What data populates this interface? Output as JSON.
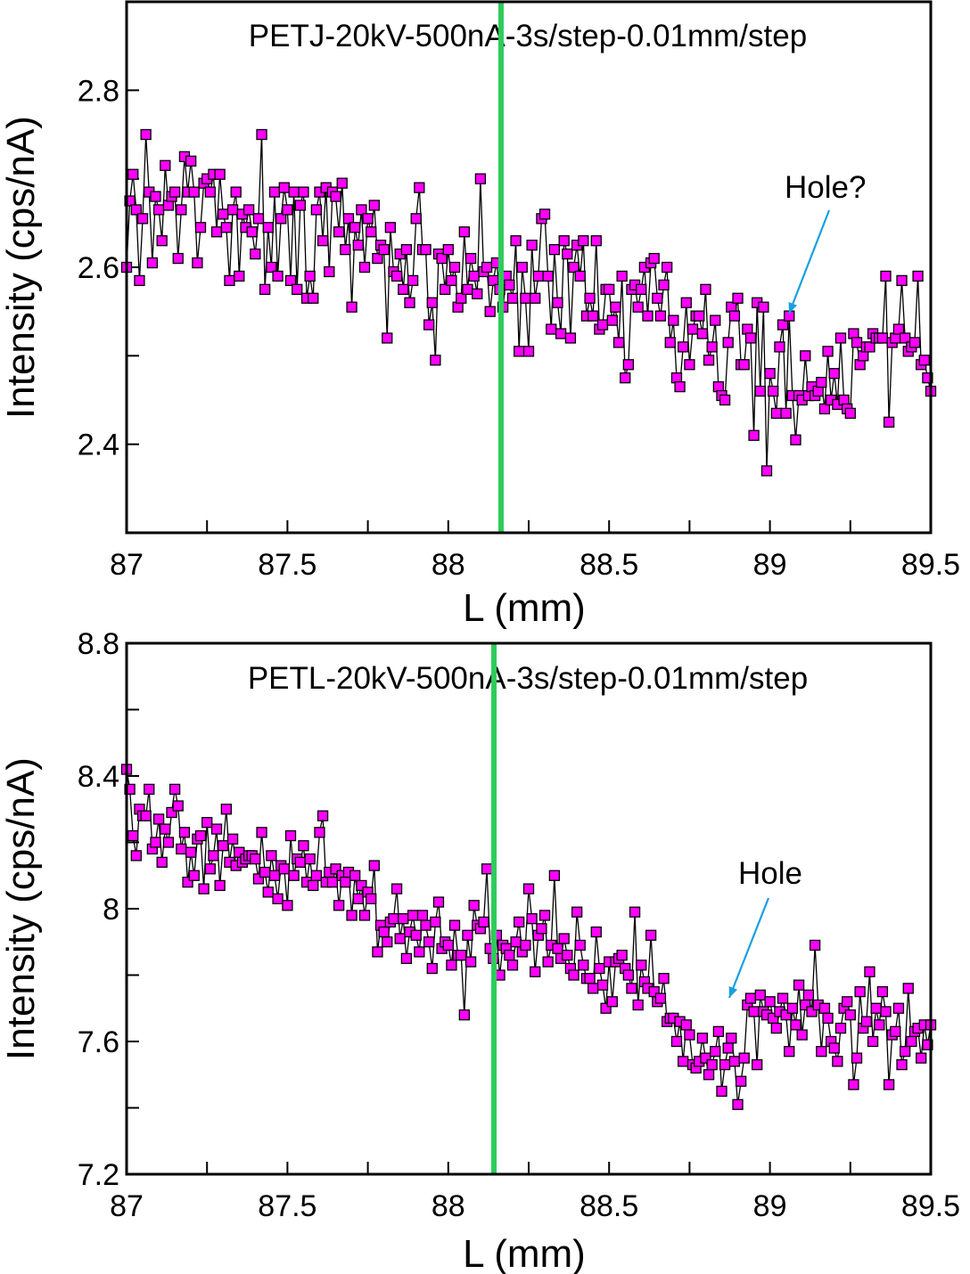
{
  "colors": {
    "marker_fill": "#ff00ff",
    "marker_edge": "#000000",
    "line": "#000000",
    "marker_line": "#2ecc5a",
    "arrow": "#1a9fe0"
  },
  "chart_data": [
    {
      "type": "line",
      "title": "PETJ-20kV-500nA-3s/step-0.01mm/step",
      "xlabel": "L (mm)",
      "ylabel": "Intensity (cps/nA)",
      "xlim": [
        87,
        89.5
      ],
      "ylim": [
        2.3,
        2.9
      ],
      "xticks": [
        "87",
        "87.5",
        "88",
        "88.5",
        "89",
        "89.5"
      ],
      "xtick_values": [
        87,
        87.5,
        88,
        88.5,
        89,
        89.5
      ],
      "yticks": [
        "2.4",
        "2.6",
        "2.8"
      ],
      "ytick_values": [
        2.4,
        2.6,
        2.8
      ],
      "y_minor_ticks": [
        2.5,
        2.7
      ],
      "marker": "square",
      "vertical_line_x": 88.164,
      "annotation": {
        "text": "Hole?",
        "x": 89.04,
        "y": 2.545
      },
      "x_start": 87.0,
      "x_step": 0.01,
      "values": [
        2.6,
        2.675,
        2.705,
        2.665,
        2.585,
        2.655,
        2.75,
        2.685,
        2.605,
        2.68,
        2.665,
        2.63,
        2.715,
        2.67,
        2.68,
        2.685,
        2.61,
        2.665,
        2.725,
        2.685,
        2.72,
        2.685,
        2.605,
        2.645,
        2.695,
        2.7,
        2.685,
        2.705,
        2.64,
        2.705,
        2.66,
        2.645,
        2.585,
        2.665,
        2.685,
        2.59,
        2.66,
        2.645,
        2.665,
        2.64,
        2.615,
        2.655,
        2.75,
        2.575,
        2.645,
        2.6,
        2.685,
        2.59,
        2.655,
        2.69,
        2.665,
        2.585,
        2.685,
        2.575,
        2.67,
        2.685,
        2.565,
        2.59,
        2.565,
        2.665,
        2.685,
        2.63,
        2.69,
        2.595,
        2.685,
        2.68,
        2.64,
        2.695,
        2.62,
        2.655,
        2.555,
        2.645,
        2.625,
        2.665,
        2.6,
        2.655,
        2.64,
        2.67,
        2.61,
        2.625,
        2.62,
        2.52,
        2.645,
        2.595,
        2.59,
        2.615,
        2.575,
        2.62,
        2.56,
        2.585,
        2.655,
        2.69,
        2.62,
        2.62,
        2.535,
        2.56,
        2.495,
        2.615,
        2.61,
        2.575,
        2.62,
        2.585,
        2.6,
        2.555,
        2.565,
        2.64,
        2.575,
        2.61,
        2.59,
        2.57,
        2.7,
        2.595,
        2.6,
        2.55,
        2.585,
        2.605,
        2.575,
        2.555,
        2.59,
        2.58,
        2.565,
        2.63,
        2.505,
        2.6,
        2.565,
        2.505,
        2.625,
        2.565,
        2.59,
        2.655,
        2.66,
        2.59,
        2.53,
        2.62,
        2.56,
        2.525,
        2.63,
        2.615,
        2.52,
        2.6,
        2.625,
        2.59,
        2.63,
        2.545,
        2.565,
        2.545,
        2.63,
        2.53,
        2.535,
        2.575,
        2.575,
        2.54,
        2.555,
        2.515,
        2.59,
        2.475,
        2.49,
        2.575,
        2.58,
        2.555,
        2.575,
        2.6,
        2.545,
        2.605,
        2.61,
        2.565,
        2.545,
        2.58,
        2.6,
        2.515,
        2.54,
        2.475,
        2.465,
        2.51,
        2.56,
        2.49,
        2.53,
        2.545,
        2.545,
        2.525,
        2.575,
        2.495,
        2.51,
        2.54,
        2.465,
        2.455,
        2.45,
        2.515,
        2.555,
        2.545,
        2.565,
        2.49,
        2.49,
        2.53,
        2.52,
        2.41,
        2.56,
        2.46,
        2.555,
        2.37,
        2.48,
        2.46,
        2.435,
        2.51,
        2.535,
        2.435,
        2.545,
        2.455,
        2.405,
        2.455,
        2.45,
        2.5,
        2.455,
        2.465,
        2.455,
        2.46,
        2.47,
        2.44,
        2.505,
        2.45,
        2.48,
        2.445,
        2.52,
        2.45,
        2.44,
        2.435,
        2.525,
        2.515,
        2.49,
        2.5,
        2.51,
        2.51,
        2.525,
        2.52,
        2.52,
        2.52,
        2.59,
        2.425,
        2.515,
        2.52,
        2.53,
        2.585,
        2.52,
        2.505,
        2.51,
        2.515,
        2.59,
        2.49,
        2.495,
        2.475,
        2.46
      ]
    },
    {
      "type": "line",
      "title": "PETL-20kV-500nA-3s/step-0.01mm/step",
      "xlabel": "L (mm)",
      "ylabel": "Intensity (cps/nA)",
      "xlim": [
        87,
        89.5
      ],
      "ylim": [
        7.2,
        8.8
      ],
      "xticks": [
        "87",
        "87.5",
        "88",
        "88.5",
        "89",
        "89.5"
      ],
      "xtick_values": [
        87,
        87.5,
        88,
        88.5,
        89,
        89.5
      ],
      "yticks": [
        "7.2",
        "7.6",
        "8",
        "8.4",
        "8.8"
      ],
      "ytick_values": [
        7.2,
        7.6,
        8.0,
        8.4,
        8.8
      ],
      "y_minor_ticks": [
        7.4,
        7.8,
        8.2,
        8.6
      ],
      "marker": "square",
      "vertical_line_x": 88.142,
      "annotation": {
        "text": "Hole",
        "x": 88.87,
        "y": 7.74
      },
      "x_start": 87.0,
      "x_step": 0.01,
      "values": [
        8.42,
        8.36,
        8.22,
        8.16,
        8.3,
        8.28,
        8.28,
        8.36,
        8.18,
        8.2,
        8.27,
        8.14,
        8.24,
        8.2,
        8.29,
        8.36,
        8.31,
        8.18,
        8.23,
        8.08,
        8.17,
        8.1,
        8.21,
        8.22,
        8.06,
        8.26,
        8.12,
        8.16,
        8.24,
        8.07,
        8.19,
        8.3,
        8.14,
        8.21,
        8.13,
        8.17,
        8.14,
        8.15,
        8.16,
        8.16,
        8.15,
        8.09,
        8.23,
        8.11,
        8.05,
        8.16,
        8.1,
        8.03,
        8.13,
        8.12,
        8.01,
        8.22,
        8.1,
        8.15,
        8.14,
        8.19,
        8.08,
        8.15,
        8.07,
        8.1,
        8.23,
        8.28,
        8.08,
        8.11,
        8.08,
        8.12,
        8.01,
        8.1,
        8.08,
        8.11,
        7.98,
        8.1,
        8.03,
        8.07,
        7.98,
        8.05,
        8.03,
        8.13,
        7.87,
        7.95,
        7.93,
        7.9,
        7.96,
        7.97,
        8.06,
        7.91,
        7.97,
        7.85,
        7.93,
        7.98,
        7.92,
        7.87,
        7.98,
        7.95,
        7.9,
        7.82,
        7.96,
        8.02,
        7.88,
        7.9,
        7.89,
        7.83,
        7.95,
        7.86,
        7.86,
        7.68,
        7.92,
        7.84,
        8.01,
        7.95,
        7.94,
        7.96,
        8.12,
        7.88,
        7.85,
        7.92,
        7.8,
        7.89,
        7.88,
        7.86,
        7.83,
        7.9,
        7.96,
        7.87,
        7.89,
        8.06,
        7.97,
        7.81,
        7.92,
        7.94,
        7.98,
        7.84,
        7.89,
        8.1,
        7.88,
        7.85,
        7.91,
        7.86,
        7.82,
        7.8,
        7.99,
        7.89,
        7.83,
        7.79,
        7.79,
        7.76,
        7.93,
        7.82,
        7.77,
        7.7,
        7.84,
        7.72,
        7.84,
        7.85,
        7.86,
        7.82,
        7.8,
        7.76,
        7.99,
        7.71,
        7.83,
        7.78,
        7.76,
        7.92,
        7.75,
        7.72,
        7.73,
        7.79,
        7.66,
        7.67,
        7.67,
        7.6,
        7.66,
        7.54,
        7.65,
        7.62,
        7.53,
        7.52,
        7.54,
        7.61,
        7.55,
        7.5,
        7.53,
        7.57,
        7.63,
        7.45,
        7.53,
        7.58,
        7.61,
        7.54,
        7.41,
        7.48,
        7.55,
        7.71,
        7.73,
        7.69,
        7.53,
        7.74,
        7.69,
        7.68,
        7.72,
        7.67,
        7.64,
        7.69,
        7.73,
        7.68,
        7.57,
        7.7,
        7.65,
        7.77,
        7.62,
        7.71,
        7.74,
        7.69,
        7.89,
        7.71,
        7.57,
        7.7,
        7.67,
        7.6,
        7.58,
        7.54,
        7.64,
        7.7,
        7.72,
        7.68,
        7.47,
        7.55,
        7.75,
        7.64,
        7.66,
        7.81,
        7.6,
        7.7,
        7.65,
        7.75,
        7.69,
        7.47,
        7.62,
        7.63,
        7.7,
        7.53,
        7.57,
        7.76,
        7.6,
        7.63,
        7.64,
        7.55,
        7.65,
        7.59,
        7.65
      ]
    }
  ]
}
